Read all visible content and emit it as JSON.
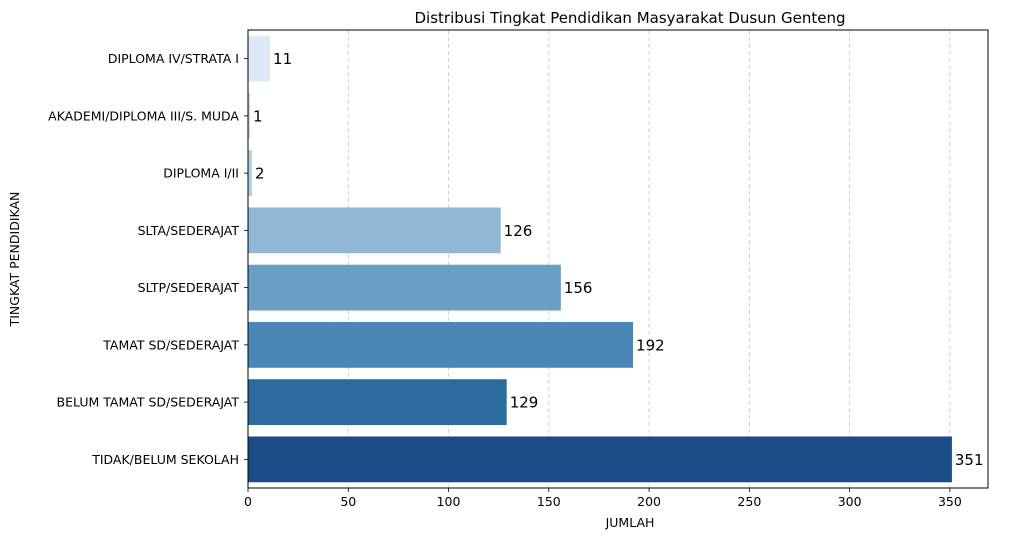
{
  "chart_data": {
    "type": "bar",
    "orientation": "horizontal",
    "title": "Distribusi Tingkat Pendidikan Masyarakat Dusun Genteng",
    "xlabel": "JUMLAH",
    "ylabel": "TINGKAT PENDIDIKAN",
    "categories": [
      "DIPLOMA IV/STRATA I",
      "AKADEMI/DIPLOMA III/S. MUDA",
      "DIPLOMA I/II",
      "SLTA/SEDERAJAT",
      "SLTP/SEDERAJAT",
      "TAMAT SD/SEDERAJAT",
      "BELUM TAMAT SD/SEDERAJAT",
      "TIDAK/BELUM SEKOLAH"
    ],
    "values": [
      11,
      1,
      2,
      126,
      156,
      192,
      129,
      351
    ],
    "data_labels": [
      "11",
      "1",
      "2",
      "126",
      "156",
      "192",
      "129",
      "351"
    ],
    "colors": [
      "#dce8f5",
      "#c6dbef",
      "#b0d2e8",
      "#8eb8d3",
      "#689fc2",
      "#4887b6",
      "#2d6a9e",
      "#1a4d87"
    ],
    "xticks": [
      0,
      50,
      100,
      150,
      200,
      250,
      300,
      350
    ],
    "xtick_labels": [
      "0",
      "50",
      "100",
      "150",
      "200",
      "250",
      "300",
      "350"
    ],
    "xlim": [
      0,
      369
    ],
    "grid": "x-dashed"
  }
}
